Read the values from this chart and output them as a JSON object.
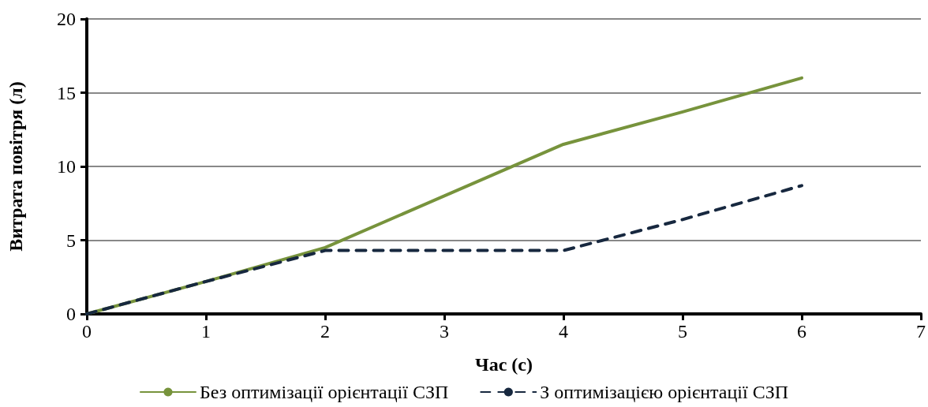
{
  "chart_data": {
    "type": "line",
    "xlabel": "Час (с)",
    "ylabel": "Витрата повітря (л)",
    "x": [
      0,
      1,
      2,
      3,
      4,
      5,
      6
    ],
    "series": [
      {
        "name": "Без оптимізації орієнтації СЗП",
        "color": "#77933c",
        "values": [
          0,
          2.2,
          4.5,
          8,
          11.5,
          13.7,
          16
        ],
        "line_style": "solid"
      },
      {
        "name": "З оптимізацією орієнтації СЗП",
        "color": "#17283f",
        "values": [
          0,
          2.2,
          4.3,
          4.3,
          4.3,
          6.4,
          8.7
        ],
        "line_style": "dashed"
      }
    ],
    "xlim": [
      0,
      7
    ],
    "xticks": [
      0,
      1,
      2,
      3,
      4,
      5,
      6,
      7
    ],
    "ylim": [
      0,
      20
    ],
    "yticks": [
      0,
      5,
      10,
      15,
      20
    ],
    "grid": "y",
    "legend": "bottom",
    "marker": "none"
  }
}
